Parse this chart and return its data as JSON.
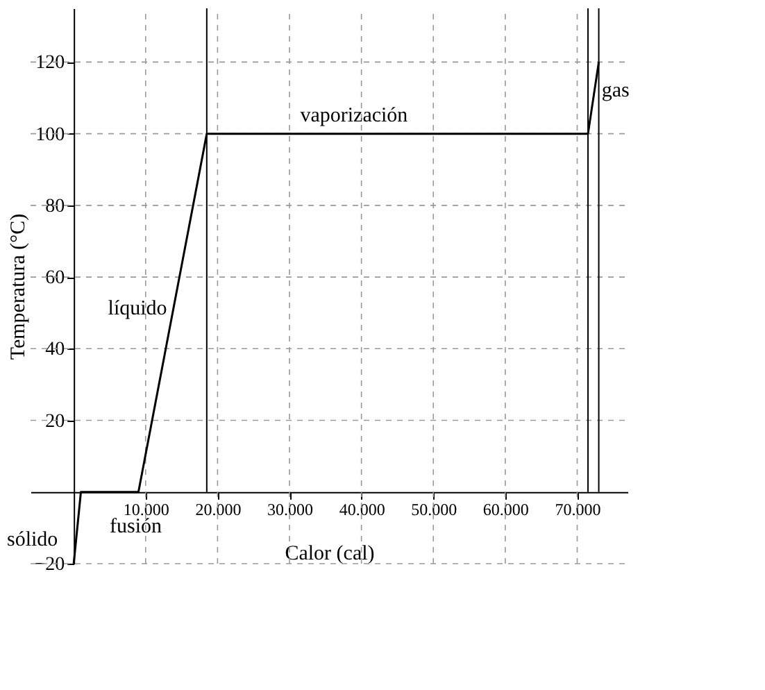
{
  "chart_data": {
    "type": "line",
    "xlabel": "Calor (cal)",
    "ylabel": "Temperatura (°C)",
    "x": [
      0,
      1000,
      9000,
      18500,
      71500,
      73000
    ],
    "series": [
      {
        "color": "#000000",
        "values": [
          -20,
          0,
          0,
          100,
          100,
          120
        ]
      }
    ],
    "xlim": [
      -6000,
      77000
    ],
    "ylim": [
      -20,
      135
    ],
    "xticks": [
      {
        "value": 10000,
        "label": "10.000"
      },
      {
        "value": 20000,
        "label": "20.000"
      },
      {
        "value": 30000,
        "label": "30.000"
      },
      {
        "value": 40000,
        "label": "40.000"
      },
      {
        "value": 50000,
        "label": "50.000"
      },
      {
        "value": 60000,
        "label": "60.000"
      },
      {
        "value": 70000,
        "label": "70.000"
      }
    ],
    "yticks": [
      -20,
      20,
      40,
      60,
      80,
      100,
      120
    ],
    "grid": true,
    "marker": "none",
    "line_style": "solid",
    "ref_lines": [
      {
        "axis": "x",
        "value": 18500
      },
      {
        "axis": "x",
        "value": 71500
      },
      {
        "axis": "x",
        "value": 73000
      }
    ],
    "annotations": [
      "sólido",
      "fusión",
      "líquido",
      "vaporización",
      "gas"
    ]
  }
}
